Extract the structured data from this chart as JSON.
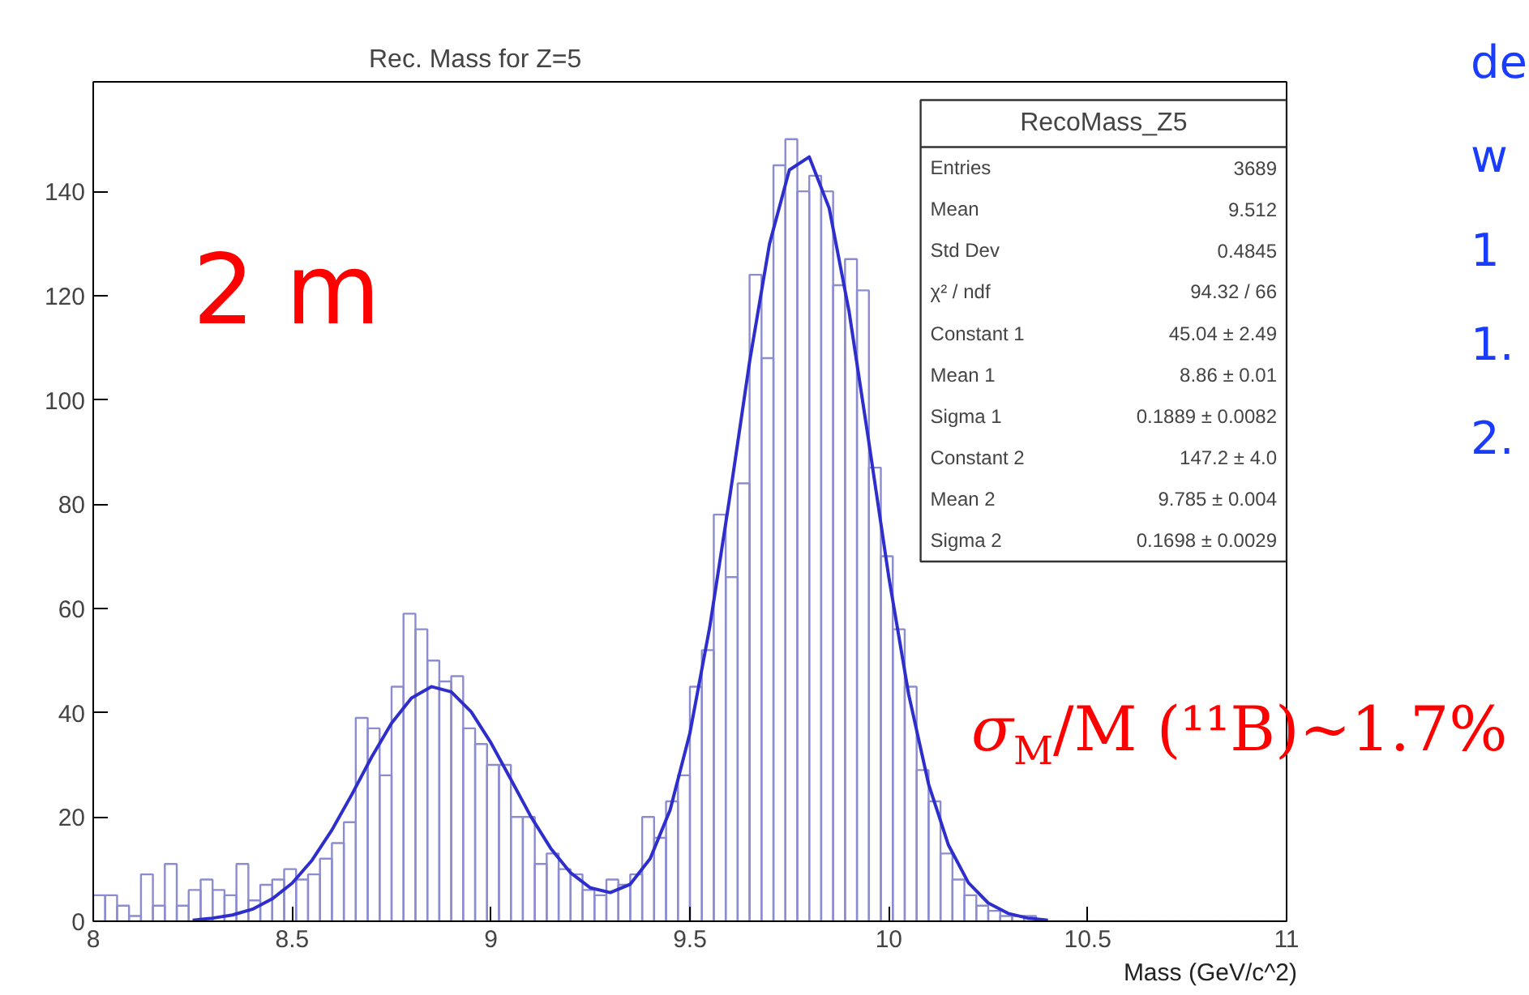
{
  "chart_data": {
    "type": "histogram",
    "title": "Rec. Mass for Z=5",
    "xlabel": "Mass (GeV/c^2)",
    "xlim": [
      8,
      11
    ],
    "ylim": [
      0,
      161
    ],
    "xticks": [
      8,
      8.5,
      9,
      9.5,
      10,
      10.5,
      11
    ],
    "yticks": [
      0,
      20,
      40,
      60,
      80,
      100,
      120,
      140
    ],
    "grid": false,
    "series": [
      {
        "type": "histogram",
        "color": "#8c8cd0",
        "bins": [
          8.0,
          8.03,
          8.06,
          8.09,
          8.12,
          8.15,
          8.18,
          8.21,
          8.24,
          8.27,
          8.3,
          8.33,
          8.36,
          8.39,
          8.42,
          8.45,
          8.48,
          8.51,
          8.54,
          8.57,
          8.6,
          8.63,
          8.66,
          8.69,
          8.72,
          8.75,
          8.78,
          8.81,
          8.84,
          8.87,
          8.9,
          8.93,
          8.96,
          8.99,
          9.02,
          9.05,
          9.08,
          9.11,
          9.14,
          9.17,
          9.2,
          9.23,
          9.26,
          9.29,
          9.32,
          9.35,
          9.38,
          9.41,
          9.44,
          9.47,
          9.5,
          9.53,
          9.56,
          9.59,
          9.62,
          9.65,
          9.68,
          9.71,
          9.74,
          9.77,
          9.8,
          9.83,
          9.86,
          9.89,
          9.92,
          9.95,
          9.98,
          10.01,
          10.04,
          10.07,
          10.1,
          10.13,
          10.16,
          10.19,
          10.22,
          10.25,
          10.28,
          10.31,
          10.34,
          10.37,
          10.4,
          10.43,
          10.46,
          10.49,
          10.52,
          10.55,
          10.58,
          10.61,
          10.64,
          10.67,
          10.7,
          10.73,
          10.76,
          10.79,
          10.82,
          10.85,
          10.88,
          10.91,
          10.94,
          10.97,
          11.0
        ],
        "values": [
          5,
          5,
          3,
          1,
          9,
          3,
          11,
          3,
          6,
          8,
          6,
          5,
          11,
          4,
          7,
          8,
          10,
          8,
          9,
          12,
          15,
          19,
          39,
          37,
          28,
          45,
          59,
          56,
          50,
          46,
          47,
          37,
          34,
          30,
          30,
          20,
          20,
          11,
          13,
          10,
          9,
          6,
          5,
          8,
          7,
          9,
          20,
          16,
          23,
          28,
          45,
          52,
          78,
          66,
          84,
          124,
          108,
          145,
          150,
          140,
          143,
          140,
          122,
          127,
          121,
          87,
          70,
          56,
          45,
          29,
          23,
          13,
          8,
          5,
          3,
          2,
          1,
          1,
          1,
          0,
          0,
          0,
          0,
          0,
          0,
          0,
          0,
          0,
          0,
          0,
          0,
          0,
          0,
          0,
          0,
          0,
          0,
          0,
          0,
          0
        ]
      },
      {
        "type": "line",
        "color": "#2e2ecc",
        "x": [
          8.25,
          8.3,
          8.35,
          8.4,
          8.45,
          8.5,
          8.55,
          8.6,
          8.65,
          8.7,
          8.75,
          8.8,
          8.85,
          8.9,
          8.95,
          9.0,
          9.05,
          9.1,
          9.15,
          9.2,
          9.25,
          9.3,
          9.35,
          9.4,
          9.45,
          9.5,
          9.55,
          9.6,
          9.65,
          9.7,
          9.75,
          9.8,
          9.85,
          9.9,
          9.95,
          10.0,
          10.05,
          10.1,
          10.15,
          10.2,
          10.25,
          10.3,
          10.35,
          10.4
        ],
        "values": [
          0.2,
          0.6,
          1.2,
          2.3,
          4.3,
          7.3,
          11.7,
          17.5,
          24.3,
          31.5,
          38.0,
          42.8,
          45.0,
          44.0,
          40.2,
          34.2,
          27.2,
          20.1,
          14.0,
          9.3,
          6.4,
          5.5,
          7.1,
          12.0,
          21.3,
          36.1,
          56.5,
          81.3,
          107.3,
          129.9,
          144.1,
          146.6,
          136.8,
          117.0,
          91.8,
          66.0,
          43.5,
          26.3,
          14.6,
          7.4,
          3.5,
          1.5,
          0.6,
          0.2
        ]
      }
    ],
    "annotations": [
      "RecoMass_Z5",
      "Entries",
      "3689",
      "Mean",
      "9.512",
      "Std Dev",
      "0.4845",
      "χ² / ndf",
      "94.32 / 66",
      "Constant 1",
      "45.04 ± 2.49",
      "Mean 1",
      "8.86 ± 0.01",
      "Sigma 1",
      "0.1889 ± 0.0082",
      "Constant 2",
      "147.2 ± 4.0",
      "Mean 2",
      "9.785 ± 0.004",
      "Sigma 2",
      "0.1698 ± 0.0029",
      "2 m",
      "σ$_{M}$/M (¹¹B)~1.7%",
      "de",
      "w",
      "1",
      "1.",
      "2."
    ]
  }
}
